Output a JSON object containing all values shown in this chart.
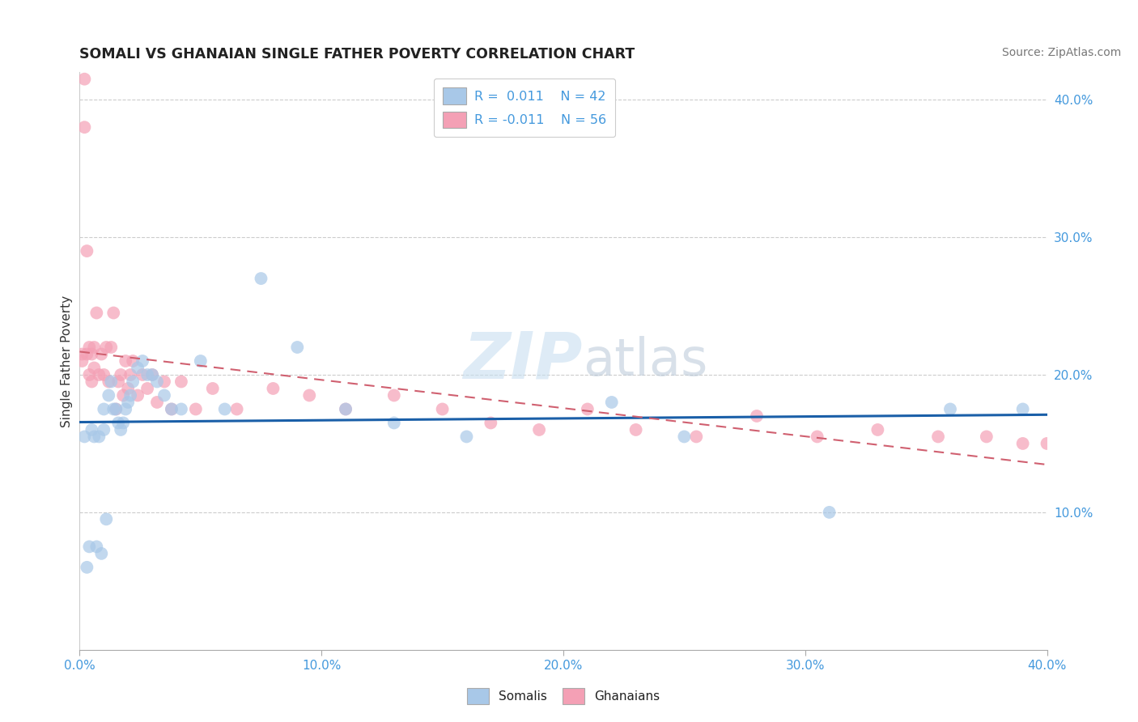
{
  "title": "SOMALI VS GHANAIAN SINGLE FATHER POVERTY CORRELATION CHART",
  "source": "Source: ZipAtlas.com",
  "ylabel": "Single Father Poverty",
  "xlim": [
    0.0,
    0.4
  ],
  "ylim": [
    0.0,
    0.42
  ],
  "xticks": [
    0.0,
    0.1,
    0.2,
    0.3,
    0.4
  ],
  "yticks": [
    0.1,
    0.2,
    0.3,
    0.4
  ],
  "xtick_labels": [
    "0.0%",
    "10.0%",
    "20.0%",
    "30.0%",
    "40.0%"
  ],
  "ytick_labels": [
    "10.0%",
    "20.0%",
    "30.0%",
    "40.0%"
  ],
  "grid_color": "#cccccc",
  "watermark_zip": "ZIP",
  "watermark_atlas": "atlas",
  "somali_color": "#a8c8e8",
  "ghanaian_color": "#f4a0b5",
  "somali_line_color": "#1a5fa8",
  "ghanaian_line_color": "#d06070",
  "somalis_label": "Somalis",
  "ghanaians_label": "Ghanaians",
  "somali_x": [
    0.002,
    0.003,
    0.004,
    0.005,
    0.006,
    0.007,
    0.008,
    0.009,
    0.01,
    0.01,
    0.011,
    0.012,
    0.013,
    0.014,
    0.015,
    0.016,
    0.017,
    0.018,
    0.019,
    0.02,
    0.021,
    0.022,
    0.024,
    0.026,
    0.028,
    0.03,
    0.032,
    0.035,
    0.038,
    0.042,
    0.05,
    0.06,
    0.075,
    0.09,
    0.11,
    0.13,
    0.16,
    0.22,
    0.25,
    0.31,
    0.36,
    0.39
  ],
  "somali_y": [
    0.155,
    0.06,
    0.075,
    0.16,
    0.155,
    0.075,
    0.155,
    0.07,
    0.16,
    0.175,
    0.095,
    0.185,
    0.195,
    0.175,
    0.175,
    0.165,
    0.16,
    0.165,
    0.175,
    0.18,
    0.185,
    0.195,
    0.205,
    0.21,
    0.2,
    0.2,
    0.195,
    0.185,
    0.175,
    0.175,
    0.21,
    0.175,
    0.27,
    0.22,
    0.175,
    0.165,
    0.155,
    0.18,
    0.155,
    0.1,
    0.175,
    0.175
  ],
  "ghanaian_x": [
    0.001,
    0.001,
    0.002,
    0.002,
    0.003,
    0.003,
    0.004,
    0.004,
    0.005,
    0.005,
    0.006,
    0.006,
    0.007,
    0.008,
    0.009,
    0.01,
    0.011,
    0.012,
    0.013,
    0.014,
    0.015,
    0.016,
    0.017,
    0.018,
    0.019,
    0.02,
    0.021,
    0.022,
    0.024,
    0.026,
    0.028,
    0.03,
    0.032,
    0.035,
    0.038,
    0.042,
    0.048,
    0.055,
    0.065,
    0.08,
    0.095,
    0.11,
    0.13,
    0.15,
    0.17,
    0.19,
    0.21,
    0.23,
    0.255,
    0.28,
    0.305,
    0.33,
    0.355,
    0.375,
    0.39,
    0.4
  ],
  "ghanaian_y": [
    0.21,
    0.215,
    0.38,
    0.415,
    0.215,
    0.29,
    0.2,
    0.22,
    0.195,
    0.215,
    0.205,
    0.22,
    0.245,
    0.2,
    0.215,
    0.2,
    0.22,
    0.195,
    0.22,
    0.245,
    0.175,
    0.195,
    0.2,
    0.185,
    0.21,
    0.19,
    0.2,
    0.21,
    0.185,
    0.2,
    0.19,
    0.2,
    0.18,
    0.195,
    0.175,
    0.195,
    0.175,
    0.19,
    0.175,
    0.19,
    0.185,
    0.175,
    0.185,
    0.175,
    0.165,
    0.16,
    0.175,
    0.16,
    0.155,
    0.17,
    0.155,
    0.16,
    0.155,
    0.155,
    0.15,
    0.15
  ]
}
